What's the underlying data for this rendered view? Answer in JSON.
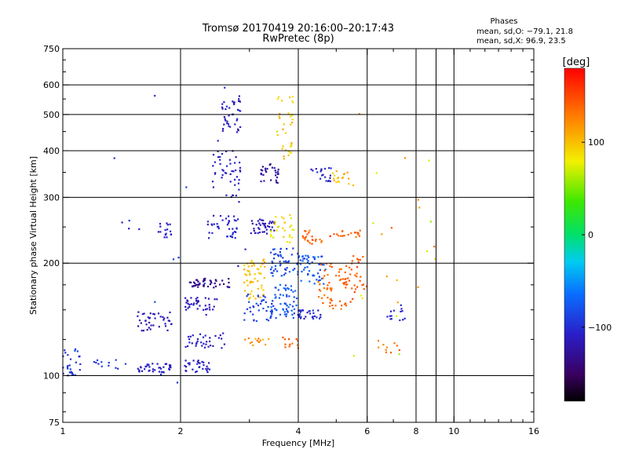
{
  "chart_data": {
    "type": "scatter",
    "title": "Tromsø 20170419 20:16:00–20:17:43",
    "subtitle": "RwPretec (8p)",
    "stats": {
      "heading": "Phases",
      "line_o": "mean, sd,O: −79.1, 21.8",
      "line_x": "mean, sd,X:  96.9, 23.5"
    },
    "xlabel": "Frequency [MHz]",
    "ylabel": "Stationary phase Virtual Height [km]",
    "x_scale": "log2",
    "y_scale": "log",
    "xlim": [
      1,
      16
    ],
    "ylim": [
      75,
      750
    ],
    "x_ticks": [
      1,
      2,
      4,
      6,
      8,
      10,
      16
    ],
    "x_tick_labels": [
      "1",
      "2",
      "4",
      "6",
      "8",
      "10",
      "16"
    ],
    "x_minor_ticks": [
      3,
      5,
      7,
      9,
      11,
      12,
      13,
      14,
      15
    ],
    "y_ticks": [
      75,
      100,
      200,
      300,
      400,
      500,
      600,
      750
    ],
    "y_tick_labels": [
      "75",
      "100",
      "200",
      "300",
      "400",
      "500",
      "600",
      "750"
    ],
    "x_grid": [
      2,
      4,
      6,
      8,
      9,
      10
    ],
    "y_grid": [
      100,
      200,
      300,
      400,
      500,
      600
    ],
    "colorbar": {
      "label": "[deg]",
      "range": [
        -180,
        180
      ],
      "ticks": [
        100,
        0,
        -100
      ],
      "tick_labels": [
        "100",
        "0",
        "−100"
      ]
    },
    "clusters": [
      {
        "f": [
          1.0,
          1.12
        ],
        "h": [
          100,
          118
        ],
        "p": -95,
        "sp": 18,
        "n": 28
      },
      {
        "f": [
          1.2,
          1.45
        ],
        "h": [
          103,
          113
        ],
        "p": -95,
        "sp": 15,
        "n": 12
      },
      {
        "f": [
          1.55,
          1.9
        ],
        "h": [
          102,
          108
        ],
        "p": -110,
        "sp": 12,
        "n": 40
      },
      {
        "f": [
          1.55,
          1.9
        ],
        "h": [
          132,
          148
        ],
        "p": -115,
        "sp": 12,
        "n": 40
      },
      {
        "f": [
          1.75,
          1.9
        ],
        "h": [
          232,
          256
        ],
        "p": -110,
        "sp": 10,
        "n": 16
      },
      {
        "f": [
          2.05,
          2.4
        ],
        "h": [
          102,
          110
        ],
        "p": -110,
        "sp": 12,
        "n": 30
      },
      {
        "f": [
          2.05,
          2.6
        ],
        "h": [
          118,
          130
        ],
        "p": -110,
        "sp": 14,
        "n": 34
      },
      {
        "f": [
          2.05,
          2.5
        ],
        "h": [
          150,
          162
        ],
        "p": -115,
        "sp": 14,
        "n": 36
      },
      {
        "f": [
          2.1,
          2.7
        ],
        "h": [
          172,
          182
        ],
        "p": -135,
        "sp": 12,
        "n": 46
      },
      {
        "f": [
          2.3,
          2.85
        ],
        "h": [
          232,
          270
        ],
        "p": -105,
        "sp": 14,
        "n": 40
      },
      {
        "f": [
          2.4,
          2.85
        ],
        "h": [
          300,
          400
        ],
        "p": -110,
        "sp": 14,
        "n": 46
      },
      {
        "f": [
          2.55,
          2.85
        ],
        "h": [
          440,
          560
        ],
        "p": -110,
        "sp": 16,
        "n": 40
      },
      {
        "f": [
          2.9,
          3.3
        ],
        "h": [
          160,
          205
        ],
        "p": 100,
        "sp": 14,
        "n": 55
      },
      {
        "f": [
          2.9,
          3.4
        ],
        "h": [
          120,
          126
        ],
        "p": 120,
        "sp": 25,
        "n": 14
      },
      {
        "f": [
          2.9,
          3.5
        ],
        "h": [
          140,
          165
        ],
        "p": -90,
        "sp": 14,
        "n": 40
      },
      {
        "f": [
          3.0,
          3.5
        ],
        "h": [
          240,
          262
        ],
        "p": -115,
        "sp": 12,
        "n": 40
      },
      {
        "f": [
          3.2,
          3.6
        ],
        "h": [
          325,
          370
        ],
        "p": -125,
        "sp": 14,
        "n": 30
      },
      {
        "f": [
          3.4,
          4.0
        ],
        "h": [
          142,
          175
        ],
        "p": -75,
        "sp": 18,
        "n": 60
      },
      {
        "f": [
          3.4,
          4.0
        ],
        "h": [
          185,
          220
        ],
        "p": -85,
        "sp": 15,
        "n": 50
      },
      {
        "f": [
          3.4,
          3.9
        ],
        "h": [
          225,
          270
        ],
        "p": 85,
        "sp": 25,
        "n": 30
      },
      {
        "f": [
          3.5,
          3.9
        ],
        "h": [
          440,
          560
        ],
        "p": 90,
        "sp": 30,
        "n": 22
      },
      {
        "f": [
          3.6,
          3.85
        ],
        "h": [
          380,
          420
        ],
        "p": 95,
        "sp": 25,
        "n": 14
      },
      {
        "f": [
          3.6,
          4.0
        ],
        "h": [
          118,
          128
        ],
        "p": 140,
        "sp": 18,
        "n": 12
      },
      {
        "f": [
          4.0,
          4.6
        ],
        "h": [
          142,
          150
        ],
        "p": -100,
        "sp": 15,
        "n": 30
      },
      {
        "f": [
          4.0,
          4.7
        ],
        "h": [
          175,
          210
        ],
        "p": -75,
        "sp": 20,
        "n": 50
      },
      {
        "f": [
          4.1,
          4.6
        ],
        "h": [
          225,
          245
        ],
        "p": 140,
        "sp": 20,
        "n": 22
      },
      {
        "f": [
          4.3,
          4.9
        ],
        "h": [
          330,
          360
        ],
        "p": -105,
        "sp": 25,
        "n": 20
      },
      {
        "f": [
          4.5,
          5.6
        ],
        "h": [
          150,
          200
        ],
        "p": 140,
        "sp": 18,
        "n": 60
      },
      {
        "f": [
          4.8,
          5.8
        ],
        "h": [
          235,
          245
        ],
        "p": 140,
        "sp": 15,
        "n": 20
      },
      {
        "f": [
          4.9,
          5.6
        ],
        "h": [
          320,
          355
        ],
        "p": 100,
        "sp": 20,
        "n": 18
      },
      {
        "f": [
          5.2,
          6.0
        ],
        "h": [
          170,
          210
        ],
        "p": 145,
        "sp": 15,
        "n": 30
      },
      {
        "f": [
          6.5,
          7.5
        ],
        "h": [
          140,
          155
        ],
        "p": -105,
        "sp": 15,
        "n": 14
      },
      {
        "f": [
          6.3,
          7.3
        ],
        "h": [
          115,
          125
        ],
        "p": 130,
        "sp": 25,
        "n": 10
      },
      {
        "f": [
          1.3,
          3.0
        ],
        "h": [
          90,
          600
        ],
        "p": -100,
        "sp": 20,
        "n": 20
      },
      {
        "f": [
          5.5,
          9.0
        ],
        "h": [
          110,
          540
        ],
        "p": 100,
        "sp": 60,
        "n": 22
      }
    ]
  }
}
